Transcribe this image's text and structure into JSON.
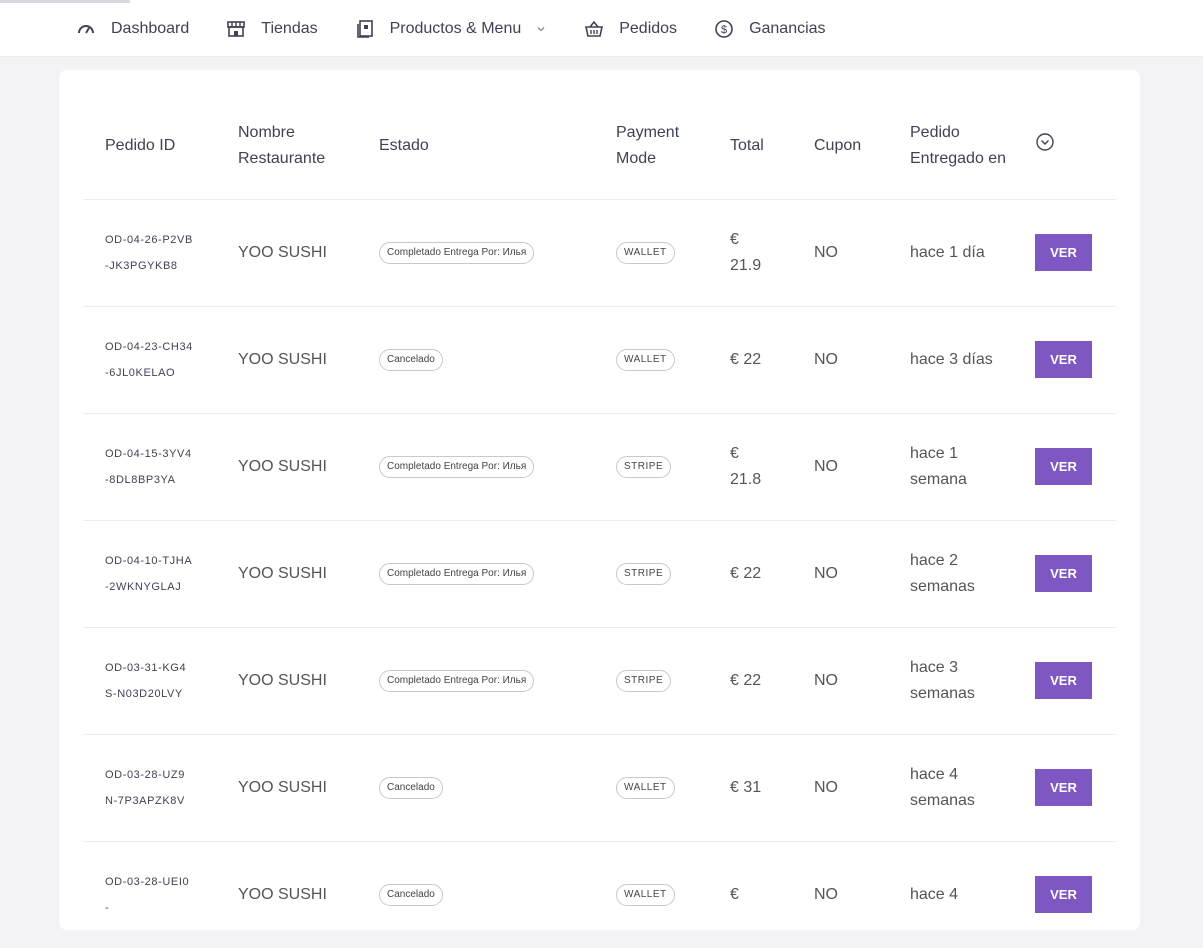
{
  "nav": {
    "items": [
      {
        "label": "Dashboard",
        "icon": "dashboard-gauge-icon"
      },
      {
        "label": "Tiendas",
        "icon": "store-icon"
      },
      {
        "label": "Productos & Menu",
        "icon": "menu-book-icon",
        "has_dropdown": true
      },
      {
        "label": "Pedidos",
        "icon": "basket-icon"
      },
      {
        "label": "Ganancias",
        "icon": "dollar-coin-icon"
      }
    ]
  },
  "table": {
    "headers": {
      "pedido_id": "Pedido ID",
      "nombre_restaurante": "Nombre Restaurante",
      "estado": "Estado",
      "payment_mode": "Payment Mode",
      "total": "Total",
      "cupon": "Cupon",
      "entregado": "Pedido Entregado en"
    },
    "rows": [
      {
        "id": "OD-04-26-P2VB-JK3PGYKB8",
        "restaurant": "YOO SUSHI",
        "estado": "Completado Entrega Por: Илья",
        "payment": "WALLET",
        "total": "€ 21.9",
        "cupon": "NO",
        "entregado": "hace 1 día",
        "action": "VER"
      },
      {
        "id": "OD-04-23-CH34-6JL0KELAO",
        "restaurant": "YOO SUSHI",
        "estado": "Cancelado",
        "payment": "WALLET",
        "total": "€ 22",
        "cupon": "NO",
        "entregado": "hace 3 días",
        "action": "VER"
      },
      {
        "id": "OD-04-15-3YV4-8DL8BP3YA",
        "restaurant": "YOO SUSHI",
        "estado": "Completado Entrega Por: Илья",
        "payment": "STRIPE",
        "total": "€ 21.8",
        "cupon": "NO",
        "entregado": "hace 1 semana",
        "action": "VER"
      },
      {
        "id": "OD-04-10-TJHA-2WKNYGLAJ",
        "restaurant": "YOO SUSHI",
        "estado": "Completado Entrega Por: Илья",
        "payment": "STRIPE",
        "total": "€ 22",
        "cupon": "NO",
        "entregado": "hace 2 semanas",
        "action": "VER"
      },
      {
        "id": "OD-03-31-KG4S-N03D20LVY",
        "restaurant": "YOO SUSHI",
        "estado": "Completado Entrega Por: Илья",
        "payment": "STRIPE",
        "total": "€ 22",
        "cupon": "NO",
        "entregado": "hace 3 semanas",
        "action": "VER"
      },
      {
        "id": "OD-03-28-UZ9N-7P3APZK8V",
        "restaurant": "YOO SUSHI",
        "estado": "Cancelado",
        "payment": "WALLET",
        "total": "€ 31",
        "cupon": "NO",
        "entregado": "hace 4 semanas",
        "action": "VER"
      },
      {
        "id": "OD-03-28-UEI0-",
        "restaurant": "YOO SUSHI",
        "estado": "Cancelado",
        "payment": "WALLET",
        "total": "€",
        "cupon": "NO",
        "entregado": "hace 4",
        "action": "VER"
      }
    ]
  },
  "colors": {
    "accent": "#7e57c2",
    "background": "#f3f3f5",
    "card": "#ffffff",
    "text": "#3f4254"
  }
}
